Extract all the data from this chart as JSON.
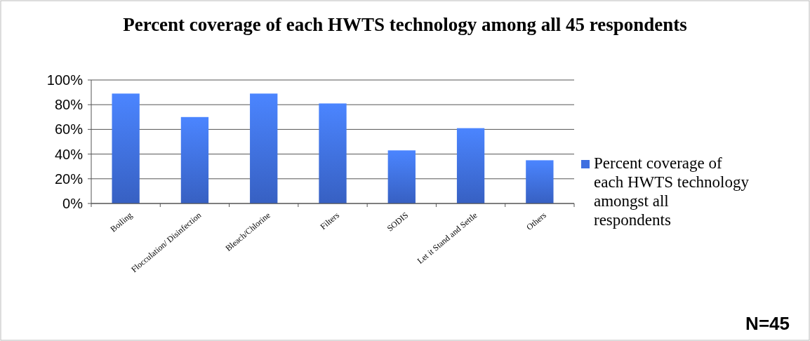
{
  "chart_data": {
    "type": "bar",
    "title": "Percent coverage of each HWTS technology among all 45 respondents",
    "categories": [
      "Boiling",
      "Flocculation/ Disinfection",
      "Bleach/Chlorine",
      "Filters",
      "SODIS",
      "Let it Stand and Settle",
      "Others"
    ],
    "series": [
      {
        "name": "Percent coverage of each HWTS technology amongst all respondents",
        "color": "#3f6fe0",
        "values": [
          89,
          70,
          89,
          81,
          43,
          61,
          35
        ]
      }
    ],
    "ylim": [
      0,
      100
    ],
    "yticks": [
      {
        "value": 0,
        "label": "0%"
      },
      {
        "value": 20,
        "label": "20%"
      },
      {
        "value": 40,
        "label": "40%"
      },
      {
        "value": 60,
        "label": "60%"
      },
      {
        "value": 80,
        "label": "80%"
      },
      {
        "value": 100,
        "label": "100%"
      }
    ],
    "grid": "y",
    "legend": "right",
    "annotations": [
      "N=45"
    ]
  }
}
